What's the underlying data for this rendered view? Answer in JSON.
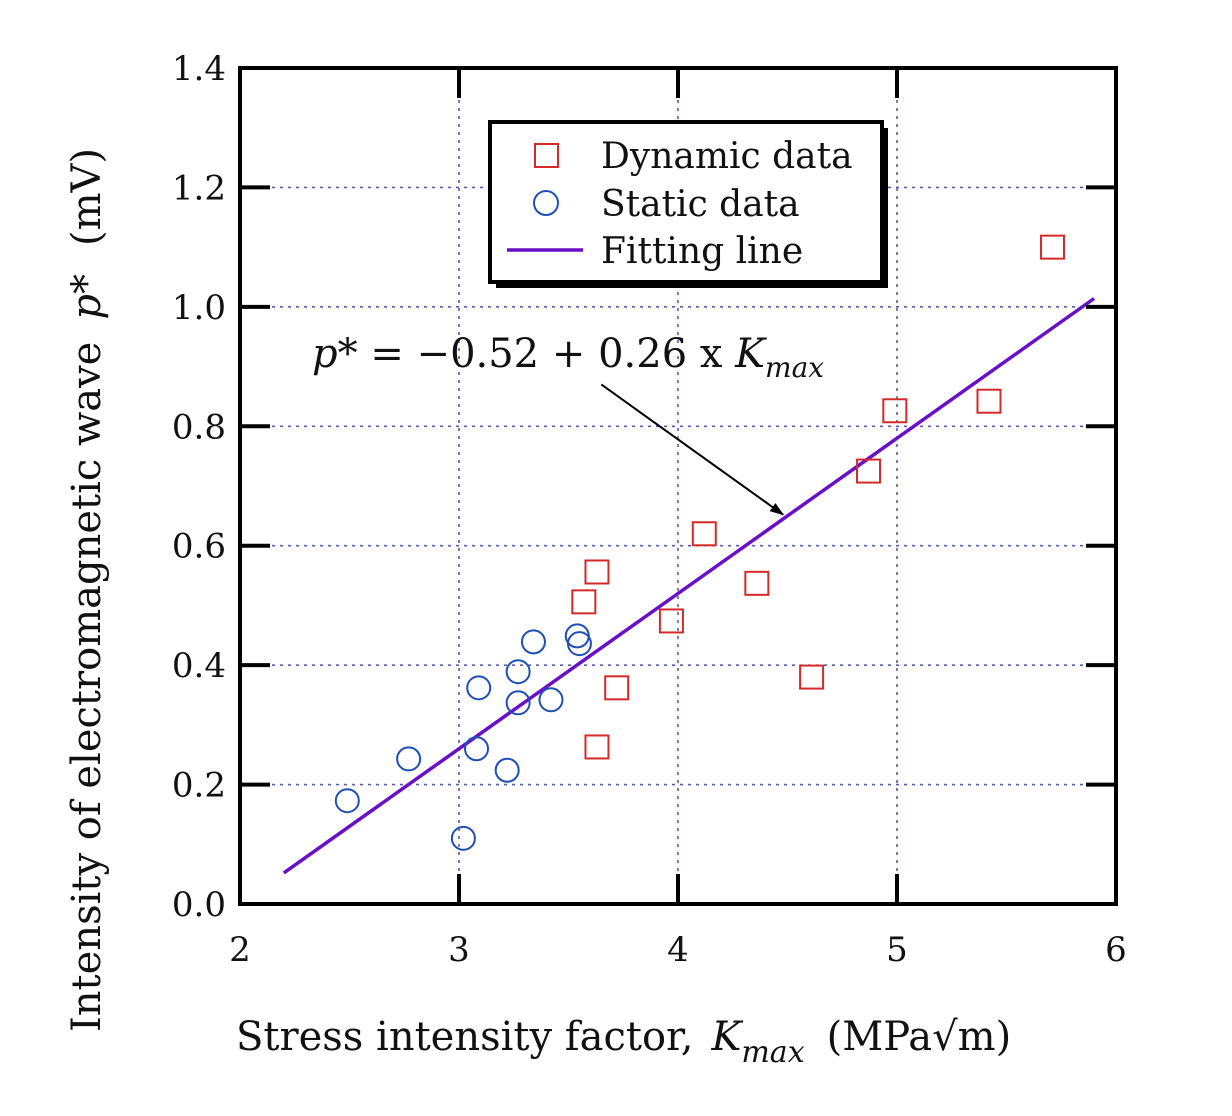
{
  "chart_data": {
    "type": "scatter",
    "title": "",
    "xlabel": {
      "prefix": "Stress intensity factor,",
      "symbol": "K",
      "subscript": "max",
      "unit": "(MPa√m)"
    },
    "ylabel": {
      "prefix": "Intensity of electromagnetic wave",
      "symbol": "p*",
      "unit": "(mV)"
    },
    "xlim": [
      2,
      6
    ],
    "ylim": [
      0,
      1.4
    ],
    "xticks": [
      2,
      3,
      4,
      5,
      6
    ],
    "xtick_labels": [
      "2",
      "3",
      "4",
      "5",
      "6"
    ],
    "yticks": [
      0,
      0.2,
      0.4,
      0.6,
      0.8,
      1.0,
      1.2,
      1.4
    ],
    "ytick_labels": [
      "0.0",
      "0.2",
      "0.4",
      "0.6",
      "0.8",
      "1.0",
      "1.2",
      "1.4"
    ],
    "grid": true,
    "legend_position": "top-center",
    "series": [
      {
        "name": "Dynamic data",
        "marker": "square",
        "color": "#d42a2a",
        "points": [
          [
            3.57,
            0.506
          ],
          [
            3.63,
            0.556
          ],
          [
            3.63,
            0.263
          ],
          [
            3.72,
            0.362
          ],
          [
            3.97,
            0.474
          ],
          [
            4.12,
            0.62
          ],
          [
            4.36,
            0.537
          ],
          [
            4.61,
            0.38
          ],
          [
            4.87,
            0.725
          ],
          [
            4.99,
            0.826
          ],
          [
            5.42,
            0.842
          ],
          [
            5.71,
            1.1
          ]
        ]
      },
      {
        "name": "Static data",
        "marker": "circle",
        "color": "#1f4fb5",
        "points": [
          [
            2.49,
            0.173
          ],
          [
            2.77,
            0.243
          ],
          [
            3.02,
            0.11
          ],
          [
            3.08,
            0.26
          ],
          [
            3.09,
            0.362
          ],
          [
            3.22,
            0.224
          ],
          [
            3.27,
            0.337
          ],
          [
            3.27,
            0.389
          ],
          [
            3.34,
            0.439
          ],
          [
            3.42,
            0.342
          ],
          [
            3.54,
            0.449
          ],
          [
            3.55,
            0.436
          ]
        ]
      },
      {
        "name": "Fitting line",
        "type": "line",
        "color": "#6a0fc8",
        "intercept": -0.52,
        "slope": 0.26,
        "x_range": [
          2.2,
          5.9
        ]
      }
    ],
    "annotations": [
      {
        "text_prefix": "p* = −0.52 + 0.26 x ",
        "symbol": "K",
        "subscript": "max",
        "arrow_from": [
          3.65,
          0.87
        ],
        "arrow_to": [
          4.48,
          0.652
        ]
      }
    ]
  },
  "colors": {
    "grid": "#5a5ab4",
    "axis": "#000000"
  }
}
